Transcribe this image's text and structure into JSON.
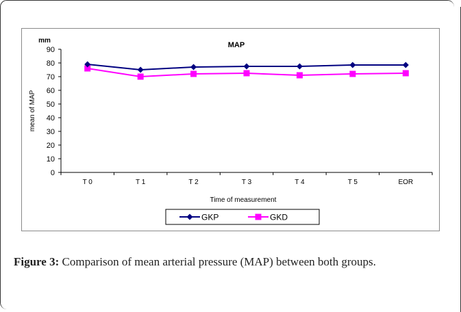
{
  "figure": {
    "label": "Figure 3:",
    "caption": "Comparison of mean arterial pressure (MAP) between both groups."
  },
  "chart_data": {
    "type": "line",
    "title": "MAP",
    "unit_label": "mm",
    "xlabel": "Time of measurement",
    "ylabel": "mean of MAP",
    "categories": [
      "T 0",
      "T 1",
      "T 2",
      "T 3",
      "T 4",
      "T 5",
      "EOR"
    ],
    "ylim": [
      0,
      90
    ],
    "yticks": [
      0,
      10,
      20,
      30,
      40,
      50,
      60,
      70,
      80,
      90
    ],
    "grid": false,
    "legend_position": "bottom",
    "series": [
      {
        "name": "GKP",
        "values": [
          79,
          75,
          77,
          77.5,
          77.5,
          78.5,
          78.5
        ],
        "color": "#000080",
        "marker": "diamond"
      },
      {
        "name": "GKD",
        "values": [
          76,
          70,
          72,
          72.5,
          71,
          72,
          72.5
        ],
        "color": "#ff00ff",
        "marker": "square"
      }
    ]
  }
}
